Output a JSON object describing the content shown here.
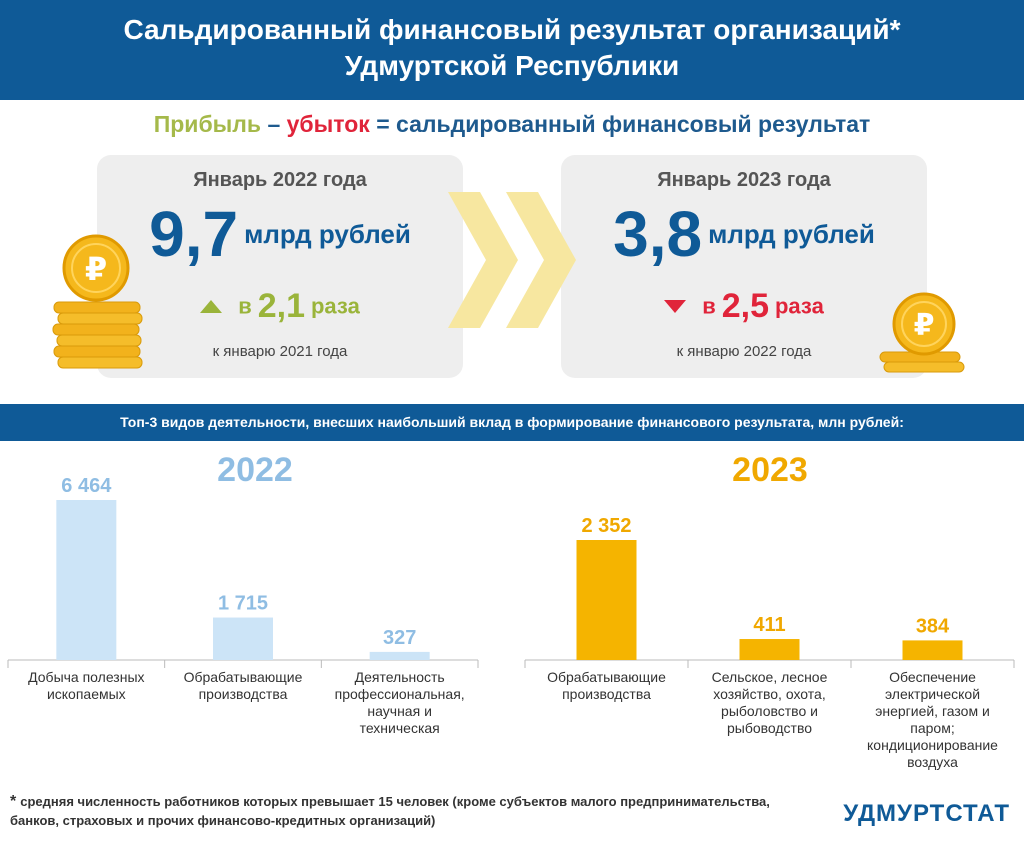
{
  "header": {
    "line1": "Сальдированный финансовый результат организаций*",
    "line2": "Удмуртской Республики"
  },
  "formula": {
    "profit": "Прибыль",
    "dash": "–",
    "loss": "убыток",
    "equals": "=",
    "result": "сальдированный финансовый результат"
  },
  "cards": [
    {
      "title": "Январь 2022 года",
      "value_int": "9",
      "value_frac": ",7",
      "unit": "млрд рублей",
      "change_prefix": "в",
      "change_value": "2,1",
      "change_suffix": "раза",
      "direction": "up",
      "reference": "к январю 2021 года"
    },
    {
      "title": "Январь 2023 года",
      "value_int": "3",
      "value_frac": ",8",
      "unit": "млрд рублей",
      "change_prefix": "в",
      "change_value": "2,5",
      "change_suffix": "раза",
      "direction": "down",
      "reference": "к январю 2022 года"
    }
  ],
  "banner": "Топ-3 видов деятельности, внесших наибольший вклад в формирование финансового результата, млн рублей:",
  "colors": {
    "primary": "#0f5a97",
    "bar2022": "#cce4f7",
    "bar2022_label": "#8fbde3",
    "bar2023": "#f5b400",
    "bar2023_label": "#f0a800",
    "up": "#9ab43a",
    "down": "#e0243a"
  },
  "chart_data": [
    {
      "type": "bar",
      "title": "2022",
      "categories": [
        [
          "Добыча полезных",
          "ископаемых"
        ],
        [
          "Обрабатывающие",
          "производства"
        ],
        [
          "Деятельность",
          "профессиональная,",
          "научная и",
          "техническая"
        ]
      ],
      "values": [
        6464,
        1715,
        327
      ],
      "value_labels": [
        "6 464",
        "1 715",
        "327"
      ],
      "units": "млн рублей"
    },
    {
      "type": "bar",
      "title": "2023",
      "categories": [
        [
          "Обрабатывающие",
          "производства"
        ],
        [
          "Сельское, лесное",
          "хозяйство, охота,",
          "рыболовство и",
          "рыбоводство"
        ],
        [
          "Обеспечение",
          "электрической",
          "энергией, газом и",
          "паром;",
          "кондиционирование",
          "воздуха"
        ]
      ],
      "values": [
        2352,
        411,
        384
      ],
      "value_labels": [
        "2 352",
        "411",
        "384"
      ],
      "units": "млн рублей"
    }
  ],
  "footnote": {
    "star": "*",
    "text": "средняя численность работников которых превышает 15 человек (кроме субъектов малого предпринимательства, банков, страховых и прочих финансово-кредитных организаций)"
  },
  "logo": "УДМУРТСТАТ"
}
